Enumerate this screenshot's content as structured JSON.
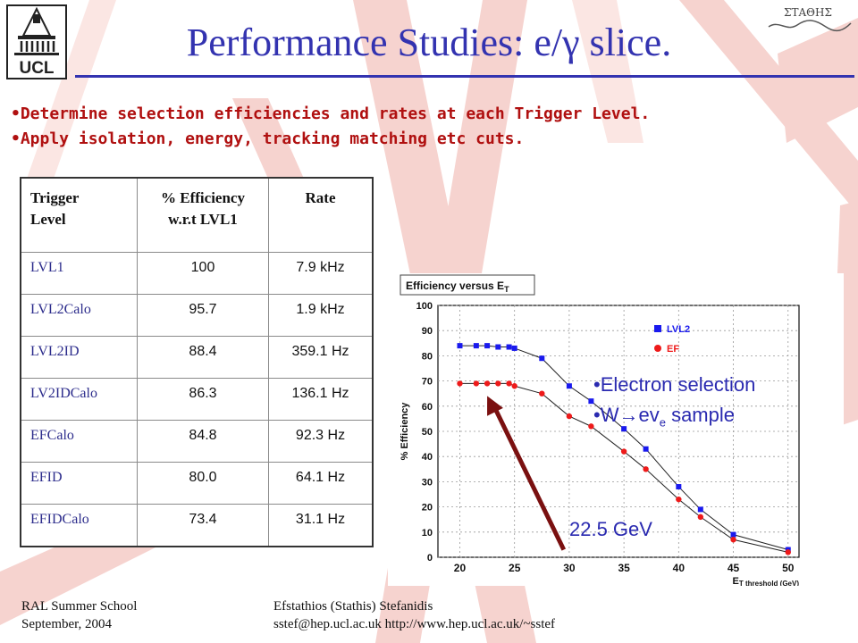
{
  "header": {
    "title": "Performance Studies: e/γ slice.",
    "logo_text": "UCL",
    "right_logo_text": "ΣΤΑΘΗΣ"
  },
  "bullets": [
    "•Determine selection efficiencies and rates at each Trigger Level.",
    "•Apply isolation, energy, tracking matching etc cuts."
  ],
  "table": {
    "headers": [
      [
        "Trigger",
        "Level"
      ],
      [
        "% Efficiency",
        "w.r.t LVL1"
      ],
      [
        "Rate"
      ]
    ],
    "rows": [
      {
        "level": "LVL1",
        "efficiency": "100",
        "rate": "7.9 kHz"
      },
      {
        "level": "LVL2Calo",
        "efficiency": "95.7",
        "rate": "1.9 kHz"
      },
      {
        "level": "LVL2ID",
        "efficiency": "88.4",
        "rate": "359.1 Hz"
      },
      {
        "level": "LV2IDCalo",
        "efficiency": "86.3",
        "rate": "136.1 Hz"
      },
      {
        "level": "EFCalo",
        "efficiency": "84.8",
        "rate": "92.3 Hz"
      },
      {
        "level": "EFID",
        "efficiency": "80.0",
        "rate": "64.1 Hz"
      },
      {
        "level": "EFIDCalo",
        "efficiency": "73.4",
        "rate": "31.1 Hz"
      }
    ]
  },
  "chart_data": {
    "type": "line",
    "title": "Efficiency versus E_T",
    "xlabel": "E_T threshold (GeV)",
    "ylabel": "% Efficiency",
    "xlim": [
      18,
      51
    ],
    "ylim": [
      0,
      100
    ],
    "xticks": [
      20,
      25,
      30,
      35,
      40,
      45,
      50
    ],
    "yticks": [
      0,
      10,
      20,
      30,
      40,
      50,
      60,
      70,
      80,
      90,
      100
    ],
    "grid": true,
    "legend_position": "top-right",
    "series": [
      {
        "name": "LVL2",
        "color": "#1a1aee",
        "marker": "square",
        "x": [
          20,
          21.5,
          22.5,
          23.5,
          24.5,
          25,
          27.5,
          30,
          32,
          35,
          37,
          40,
          42,
          45,
          50
        ],
        "y": [
          84,
          84,
          84,
          83.5,
          83.5,
          83,
          79,
          68,
          62,
          51,
          43,
          28,
          19,
          9,
          3
        ]
      },
      {
        "name": "EF",
        "color": "#ee1a1a",
        "marker": "circle",
        "x": [
          20,
          21.5,
          22.5,
          23.5,
          24.5,
          25,
          27.5,
          30,
          32,
          35,
          37,
          40,
          42,
          45,
          50
        ],
        "y": [
          69,
          69,
          69,
          69,
          69,
          68,
          65,
          56,
          52,
          42,
          35,
          23,
          16,
          7,
          2
        ]
      }
    ]
  },
  "callout": {
    "line1": "•Electron selection",
    "line2_prefix": "•W",
    "line2_arrow": "→",
    "line2_mid": "ev",
    "line2_sub": "e",
    "line2_suffix": " sample",
    "arrow_label": "22.5 GeV",
    "arrow_color": "#7a1010"
  },
  "footer": {
    "left_line1": "RAL Summer School",
    "left_line2": "September,  2004",
    "mid_line1": "Efstathios (Stathis) Stefanidis",
    "mid_line2": "sstef@hep.ucl.ac.uk   http://www.hep.ucl.ac.uk/~sstef"
  },
  "colors": {
    "title": "#3333b0",
    "bullets": "#b01010",
    "accent": "#2a2ab0"
  }
}
